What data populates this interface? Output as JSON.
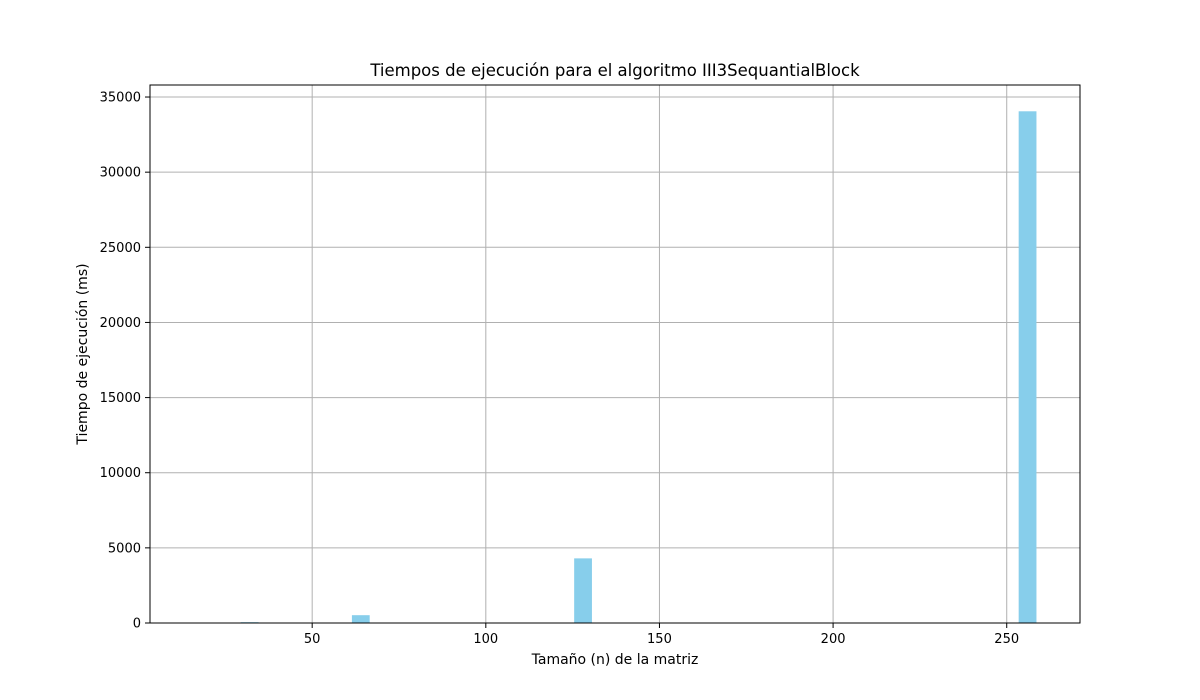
{
  "chart_data": {
    "type": "bar",
    "title": "Tiempos de ejecución para el algoritmo III3SequantialBlock",
    "xlabel": "Tamaño (n) de la matriz",
    "ylabel": "Tiempo de ejecución (ms)",
    "x": [
      16,
      32,
      64,
      128,
      256
    ],
    "values": [
      3,
      55,
      520,
      4300,
      34050
    ],
    "bar_width": 5.12,
    "bar_color": "#87ceeb",
    "xlim": [
      3.3,
      271.1
    ],
    "ylim": [
      0,
      35800
    ],
    "xticks": [
      50,
      100,
      150,
      200,
      250
    ],
    "yticks": [
      0,
      5000,
      10000,
      15000,
      20000,
      25000,
      30000,
      35000
    ],
    "grid": true
  }
}
